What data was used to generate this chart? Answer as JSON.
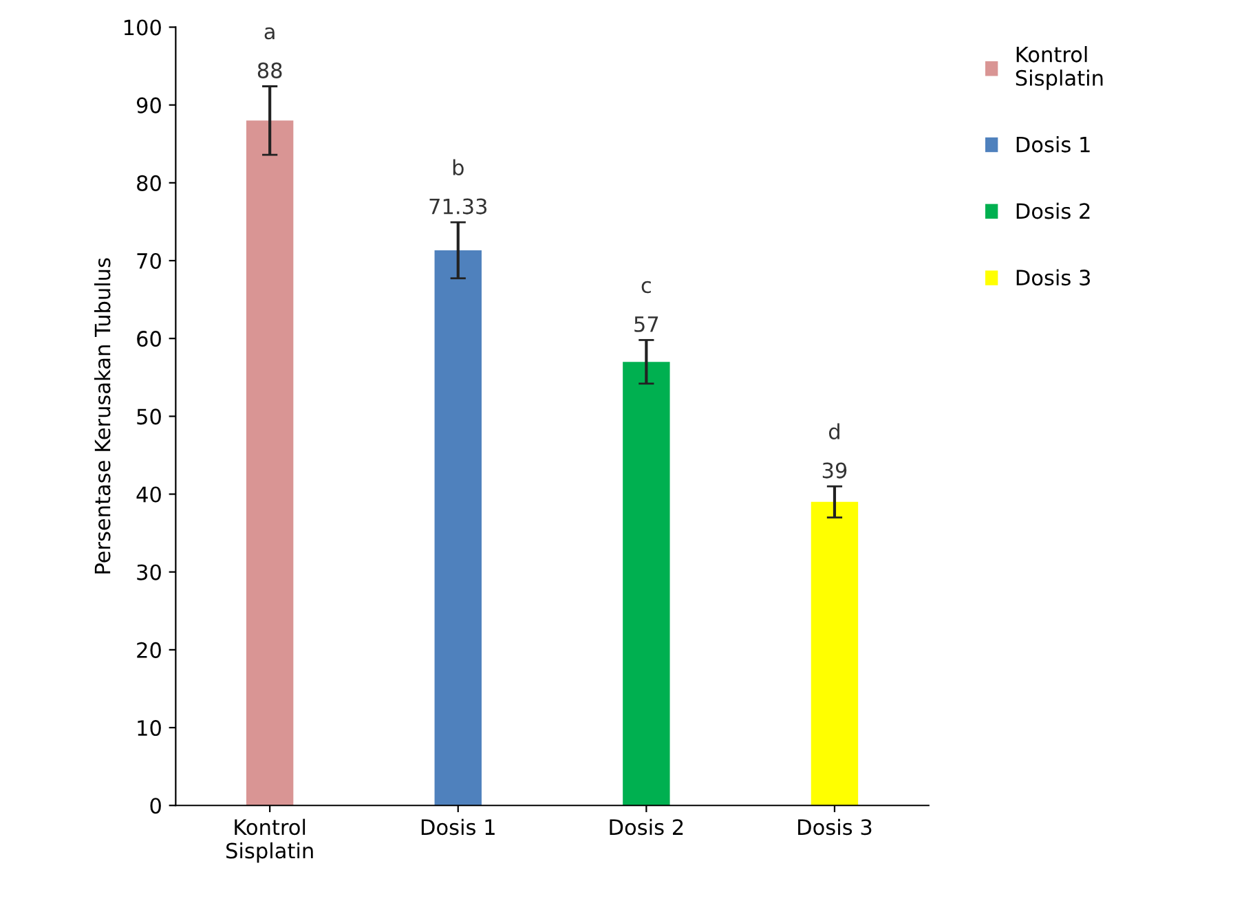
{
  "chart_data": {
    "type": "bar",
    "ylabel": "Persentase Kerusakan Tubulus",
    "categories": [
      "Kontrol\nSisplatin",
      "Dosis 1",
      "Dosis 2",
      "Dosis 3"
    ],
    "series": [
      {
        "name": "Kontrol\nSisplatin",
        "color": "#d99594",
        "values": [
          88,
          null,
          null,
          null
        ],
        "errors": [
          4.4,
          null,
          null,
          null
        ]
      },
      {
        "name": "Dosis 1",
        "color": "#4f81bd",
        "values": [
          null,
          71.33,
          null,
          null
        ],
        "errors": [
          null,
          3.6,
          null,
          null
        ]
      },
      {
        "name": "Dosis 2",
        "color": "#00b050",
        "values": [
          null,
          null,
          57,
          null
        ],
        "errors": [
          null,
          null,
          2.8,
          null
        ]
      },
      {
        "name": "Dosis 3",
        "color": "#ffff00",
        "values": [
          null,
          null,
          null,
          39
        ],
        "errors": [
          null,
          null,
          null,
          2
        ]
      }
    ],
    "ylim": [
      0,
      100
    ],
    "yticks": [
      0,
      10,
      20,
      30,
      40,
      50,
      60,
      70,
      80,
      90,
      100
    ],
    "data_labels": true,
    "grid": false,
    "legend": "right",
    "annotations": [
      "a",
      "b",
      "c",
      "d"
    ]
  }
}
